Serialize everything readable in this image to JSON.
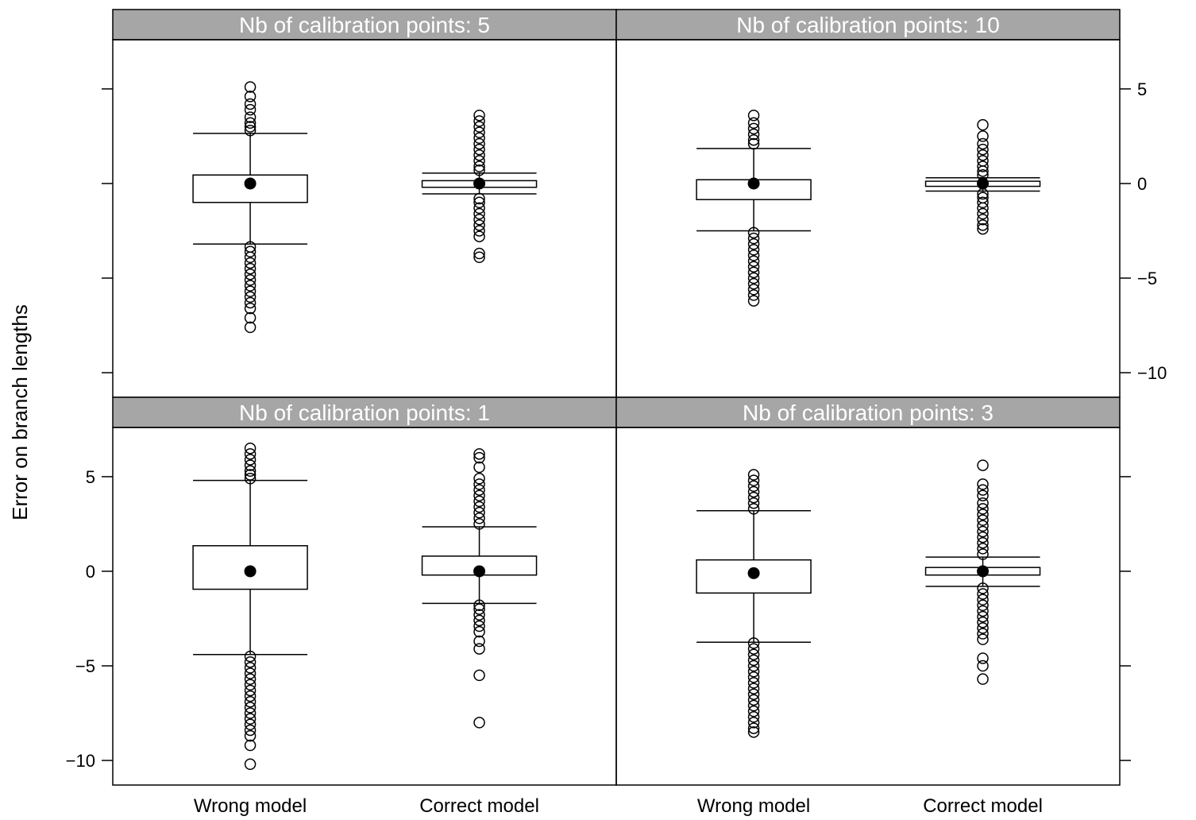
{
  "chart_data": {
    "type": "box",
    "ylabel": "Error on branch lengths",
    "categories": [
      "Wrong model",
      "Correct model"
    ],
    "y_ticks": [
      -10,
      -5,
      0,
      5
    ],
    "y_tick_labels": [
      "−10",
      "−5",
      "0",
      "5"
    ],
    "ylim": [
      -11.3,
      7.6
    ],
    "grid": false,
    "colors": {
      "strip": "#a6a6a6",
      "stroke": "#000000"
    },
    "panels": [
      {
        "title": "Nb of calibration points: 5",
        "boxes": [
          {
            "category": "Wrong model",
            "median": 0,
            "q1": -1,
            "q3": 0.45,
            "whisker_low": -3.2,
            "whisker_high": 2.65,
            "outliers_low": [
              -3.35,
              -3.6,
              -3.9,
              -4.2,
              -4.5,
              -4.8,
              -5.1,
              -5.4,
              -5.7,
              -6.0,
              -6.3,
              -6.6,
              -7.1,
              -7.6
            ],
            "outliers_high": [
              2.8,
              3.0,
              3.2,
              3.5,
              3.9,
              4.2,
              4.6,
              5.1
            ]
          },
          {
            "category": "Correct model",
            "median": 0,
            "q1": -0.2,
            "q3": 0.15,
            "whisker_low": -0.55,
            "whisker_high": 0.55,
            "outliers_low": [
              -0.8,
              -1.0,
              -1.3,
              -1.6,
              -1.9,
              -2.2,
              -2.5,
              -2.8,
              -3.7,
              -3.9
            ],
            "outliers_high": [
              0.7,
              0.9,
              1.2,
              1.5,
              1.8,
              2.1,
              2.4,
              2.7,
              3.0,
              3.3,
              3.6
            ]
          }
        ]
      },
      {
        "title": "Nb of calibration points: 10",
        "boxes": [
          {
            "category": "Wrong model",
            "median": 0,
            "q1": -0.85,
            "q3": 0.2,
            "whisker_low": -2.5,
            "whisker_high": 1.85,
            "outliers_low": [
              -2.6,
              -2.9,
              -3.2,
              -3.5,
              -3.8,
              -4.1,
              -4.4,
              -4.7,
              -5.0,
              -5.3,
              -5.6,
              -5.9,
              -6.2
            ],
            "outliers_high": [
              2.1,
              2.3,
              2.6,
              2.9,
              3.2,
              3.6
            ]
          },
          {
            "category": "Correct model",
            "median": 0,
            "q1": -0.15,
            "q3": 0.12,
            "whisker_low": -0.4,
            "whisker_high": 0.3,
            "outliers_low": [
              -0.55,
              -0.75,
              -1.0,
              -1.3,
              -1.6,
              -1.9,
              -2.2,
              -2.4
            ],
            "outliers_high": [
              0.45,
              0.65,
              0.9,
              1.2,
              1.5,
              1.8,
              2.1,
              2.5,
              3.1
            ]
          }
        ]
      },
      {
        "title": "Nb of calibration points: 1",
        "boxes": [
          {
            "category": "Wrong model",
            "median": 0,
            "q1": -0.95,
            "q3": 1.35,
            "whisker_low": -4.4,
            "whisker_high": 4.8,
            "outliers_low": [
              -4.5,
              -4.8,
              -5.1,
              -5.4,
              -5.7,
              -6.0,
              -6.3,
              -6.6,
              -6.9,
              -7.2,
              -7.5,
              -7.8,
              -8.1,
              -8.4,
              -8.7,
              -9.2,
              -10.2
            ],
            "outliers_high": [
              4.9,
              5.1,
              5.3,
              5.6,
              5.9,
              6.2,
              6.5
            ]
          },
          {
            "category": "Correct model",
            "median": 0,
            "q1": -0.2,
            "q3": 0.8,
            "whisker_low": -1.7,
            "whisker_high": 2.35,
            "outliers_low": [
              -1.8,
              -2.0,
              -2.3,
              -2.6,
              -2.9,
              -3.2,
              -3.7,
              -4.1,
              -5.5,
              -8.0
            ],
            "outliers_high": [
              2.5,
              2.8,
              3.1,
              3.4,
              3.7,
              4.0,
              4.3,
              4.6,
              4.9,
              5.5,
              6.0,
              6.2
            ]
          }
        ]
      },
      {
        "title": "Nb of calibration points: 3",
        "boxes": [
          {
            "category": "Wrong model",
            "median": -0.1,
            "q1": -1.15,
            "q3": 0.6,
            "whisker_low": -3.75,
            "whisker_high": 3.2,
            "outliers_low": [
              -3.8,
              -4.1,
              -4.4,
              -4.7,
              -5.0,
              -5.3,
              -5.6,
              -5.9,
              -6.2,
              -6.5,
              -6.8,
              -7.1,
              -7.4,
              -7.7,
              -8.0,
              -8.3,
              -8.5
            ],
            "outliers_high": [
              3.3,
              3.6,
              3.9,
              4.2,
              4.5,
              4.8,
              5.1
            ]
          },
          {
            "category": "Correct model",
            "median": 0,
            "q1": -0.2,
            "q3": 0.2,
            "whisker_low": -0.8,
            "whisker_high": 0.75,
            "outliers_low": [
              -0.9,
              -1.2,
              -1.5,
              -1.8,
              -2.1,
              -2.4,
              -2.7,
              -3.0,
              -3.3,
              -3.6,
              -4.6,
              -5.0,
              -5.7
            ],
            "outliers_high": [
              0.9,
              1.2,
              1.5,
              1.8,
              2.1,
              2.4,
              2.7,
              3.0,
              3.3,
              3.6,
              4.0,
              4.3,
              4.6,
              5.6
            ]
          }
        ]
      }
    ]
  }
}
